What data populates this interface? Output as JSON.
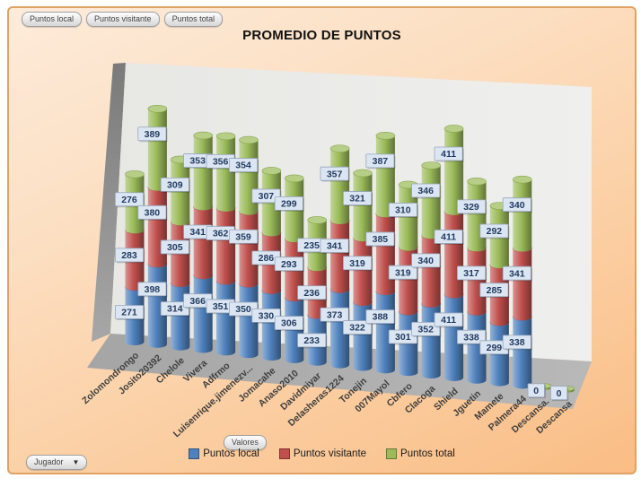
{
  "window": {
    "title": "PROMEDIO DE PUNTOS"
  },
  "filter_buttons": [
    {
      "label": "Puntos local"
    },
    {
      "label": "Puntos visitante"
    },
    {
      "label": "Puntos total"
    }
  ],
  "axis_button": {
    "label": "Valores"
  },
  "field_dropdown": {
    "label": "Jugador"
  },
  "colors": {
    "panel_border": "#DFA164",
    "panel_bg_top": "#FDEBDA",
    "panel_bg_bottom": "#FABD85",
    "back_wall": "#EBEBE8",
    "side_wall": "#8F8F8F",
    "floor": "#ADADAD",
    "label_box_bg": "#DCE5F2",
    "label_box_border": "#96A7BD",
    "label_text": "#1F3A5F",
    "category_text": "#3F3F3F"
  },
  "chart_data": {
    "type": "bar",
    "subtype": "3d-stacked-cylinder",
    "title": "PROMEDIO DE PUNTOS",
    "xlabel": "Jugador",
    "ylabel": "",
    "grid": false,
    "legend_position": "bottom",
    "data_labels": true,
    "categories": [
      "Zolomondrongo",
      "Josito20392",
      "Chelole",
      "Vivera",
      "Adfrmo",
      "Luisenrique.jimenezv...",
      "Jomacahe",
      "Anaso2010",
      "Davidmiyar",
      "Delasheras1224",
      "Tonejin",
      "007Mayol",
      "Cbfero",
      "Clacoga",
      "Shield",
      "Jguetin",
      "Mamete",
      "Palmera44",
      "Descansa.",
      "Descansa"
    ],
    "series": [
      {
        "name": "Puntos local",
        "color": "#4F81BD",
        "values": [
          271,
          398,
          314,
          366,
          351,
          350,
          330,
          306,
          233,
          373,
          322,
          388,
          301,
          352,
          411,
          338,
          299,
          338,
          0,
          0
        ]
      },
      {
        "name": "Puntos visitante",
        "color": "#C0504D",
        "values": [
          283,
          380,
          305,
          341,
          362,
          359,
          286,
          293,
          236,
          341,
          319,
          385,
          319,
          340,
          411,
          317,
          285,
          341,
          0,
          0
        ]
      },
      {
        "name": "Puntos total",
        "color": "#9BBB59",
        "values": [
          276,
          389,
          309,
          353,
          356,
          354,
          307,
          299,
          235,
          357,
          321,
          387,
          310,
          346,
          411,
          329,
          292,
          340,
          0,
          0
        ]
      }
    ]
  }
}
